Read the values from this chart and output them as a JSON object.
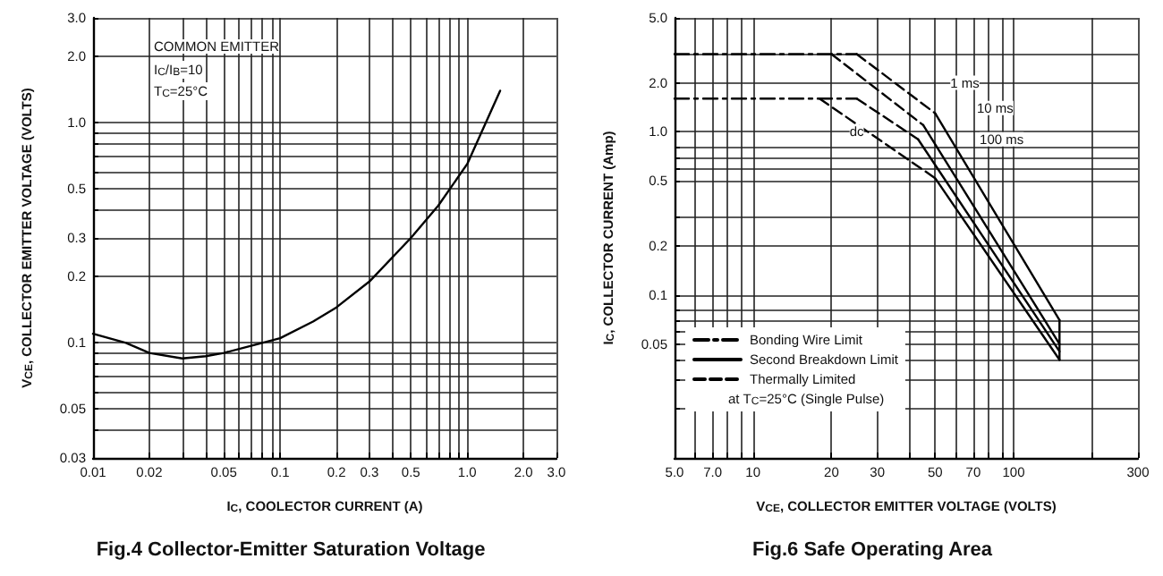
{
  "chart_data": [
    {
      "type": "line",
      "title": "Fig.4 Collector-Emitter Saturation Voltage",
      "xlabel": "I$_{C}$, COOLECTOR CURRENT (A)",
      "ylabel": "V$_{CE}$, COLLECTOR EMITTER VOLTAGE (VOLTS)",
      "annotations": [
        "COMMON EMITTER",
        "I$_{C}$/I$_{B}$=10",
        "T$_{C}$=25°C"
      ],
      "log": "xy",
      "grid": true,
      "legend": false,
      "marker": "none",
      "x": [
        0.01,
        0.015,
        0.02,
        0.03,
        0.04,
        0.05,
        0.07,
        0.1,
        0.15,
        0.2,
        0.3,
        0.5,
        0.7,
        1.0,
        1.5
      ],
      "series": [
        {
          "color": "#000000",
          "line_style": "solid",
          "values": [
            0.11,
            0.1,
            0.09,
            0.085,
            0.087,
            0.09,
            0.097,
            0.105,
            0.125,
            0.145,
            0.19,
            0.3,
            0.42,
            0.65,
            1.4
          ]
        }
      ],
      "xlim": [
        0.01,
        3.0
      ],
      "xticks": [
        0.01,
        0.02,
        {
          "value": 0.03,
          "label": null
        },
        {
          "value": 0.04,
          "label": null
        },
        0.05,
        {
          "value": 0.06,
          "label": null
        },
        {
          "value": 0.07,
          "label": null
        },
        {
          "value": 0.08,
          "label": null
        },
        {
          "value": 0.09,
          "label": null
        },
        0.1,
        0.2,
        0.3,
        {
          "value": 0.4,
          "label": null
        },
        0.5,
        {
          "value": 0.6,
          "label": null
        },
        {
          "value": 0.7,
          "label": null
        },
        {
          "value": 0.8,
          "label": null
        },
        {
          "value": 0.9,
          "label": null
        },
        {
          "value": 1,
          "label": "1.0"
        },
        {
          "value": 2,
          "label": "2.0"
        },
        {
          "value": 3,
          "label": "3.0"
        }
      ],
      "ylim": [
        0.03,
        3.0
      ],
      "yticks": [
        0.03,
        {
          "value": 0.04,
          "label": null
        },
        0.05,
        {
          "value": 0.06,
          "label": null
        },
        {
          "value": 0.07,
          "label": null
        },
        {
          "value": 0.08,
          "label": null
        },
        {
          "value": 0.09,
          "label": null
        },
        0.1,
        0.2,
        0.3,
        {
          "value": 0.4,
          "label": null
        },
        0.5,
        {
          "value": 0.6,
          "label": null
        },
        {
          "value": 0.7,
          "label": null
        },
        {
          "value": 0.8,
          "label": null
        },
        {
          "value": 0.9,
          "label": null
        },
        {
          "value": 1,
          "label": "1.0"
        },
        {
          "value": 2,
          "label": "2.0"
        },
        {
          "value": 3,
          "label": "3.0"
        }
      ]
    },
    {
      "type": "line",
      "title": "Fig.6 Safe Operating Area",
      "xlabel": "V$_{CE}$, COLLECTOR EMITTER VOLTAGE (VOLTS)",
      "ylabel": "I$_{C}$, COLLECTOR CURRENT (Amp)",
      "log": "xy",
      "grid": true,
      "legend": "bottom left",
      "marker": "none",
      "annotations": [
        {
          "text": "1 ms",
          "x": 65,
          "y": 2.0
        },
        {
          "text": "10 ms",
          "x": 85,
          "y": 1.4
        },
        {
          "text": "100 ms",
          "x": 90,
          "y": 0.9
        },
        {
          "text": "dc",
          "x": 25,
          "y": 1.0
        },
        "at T$_{C}$=25°C (Single Pulse)"
      ],
      "series": [
        {
          "name": "Bonding Wire Limit",
          "color": "#000000",
          "line_style": "dashdot",
          "x": [
            5,
            25
          ],
          "values": [
            3.0,
            3.0
          ]
        },
        {
          "color": "#000000",
          "line_style": "dashdot",
          "x": [
            5,
            25
          ],
          "values": [
            1.6,
            1.6
          ]
        },
        {
          "name": "Second Breakdown Limit",
          "color": "#000000",
          "line_style": "solid",
          "x": [
            50,
            150
          ],
          "values": [
            1.3,
            0.07
          ]
        },
        {
          "color": "#000000",
          "line_style": "solid",
          "x": [
            45,
            150
          ],
          "values": [
            1.1,
            0.05
          ]
        },
        {
          "color": "#000000",
          "line_style": "solid",
          "x": [
            43,
            150
          ],
          "values": [
            0.9,
            0.045
          ]
        },
        {
          "color": "#000000",
          "line_style": "solid",
          "x": [
            50,
            150
          ],
          "values": [
            0.52,
            0.04
          ]
        },
        {
          "color": "#000000",
          "line_style": "solid",
          "x": [
            150,
            150
          ],
          "values": [
            0.07,
            0.04
          ]
        },
        {
          "name": "Thermally Limited",
          "color": "#000000",
          "line_style": "dashed",
          "x": [
            25,
            50
          ],
          "values": [
            3.0,
            1.3
          ]
        },
        {
          "color": "#000000",
          "line_style": "dashed",
          "x": [
            20,
            45
          ],
          "values": [
            3.0,
            1.1
          ]
        },
        {
          "color": "#000000",
          "line_style": "dashed",
          "x": [
            25,
            43
          ],
          "values": [
            1.6,
            0.9
          ]
        },
        {
          "color": "#000000",
          "line_style": "dashed",
          "x": [
            18,
            50
          ],
          "values": [
            1.6,
            0.52
          ]
        }
      ],
      "xlim": [
        5,
        300
      ],
      "xticks": [
        {
          "value": 5,
          "label": "5.0"
        },
        {
          "value": 6,
          "label": null
        },
        {
          "value": 7,
          "label": "7.0"
        },
        {
          "value": 8,
          "label": null
        },
        {
          "value": 9,
          "label": null
        },
        10,
        20,
        30,
        {
          "value": 40,
          "label": null
        },
        50,
        {
          "value": 60,
          "label": null
        },
        70,
        {
          "value": 80,
          "label": null
        },
        {
          "value": 90,
          "label": null
        },
        100,
        {
          "value": 200,
          "label": null
        },
        300
      ],
      "ylim": [
        0.01,
        5.0
      ],
      "yticks": [
        {
          "value": 0.02,
          "label": null
        },
        {
          "value": 0.03,
          "label": null
        },
        {
          "value": 0.04,
          "label": null
        },
        0.05,
        {
          "value": 0.06,
          "label": null
        },
        {
          "value": 0.07,
          "label": null
        },
        {
          "value": 0.08,
          "label": null
        },
        0.1,
        0.2,
        {
          "value": 0.3,
          "label": null
        },
        0.5,
        {
          "value": 0.6,
          "label": null
        },
        {
          "value": 0.7,
          "label": null
        },
        {
          "value": 0.8,
          "label": null
        },
        {
          "value": 1,
          "label": "1.0"
        },
        {
          "value": 2,
          "label": "2.0"
        },
        {
          "value": 3,
          "label": null
        },
        {
          "value": 5,
          "label": "5.0"
        }
      ]
    }
  ]
}
